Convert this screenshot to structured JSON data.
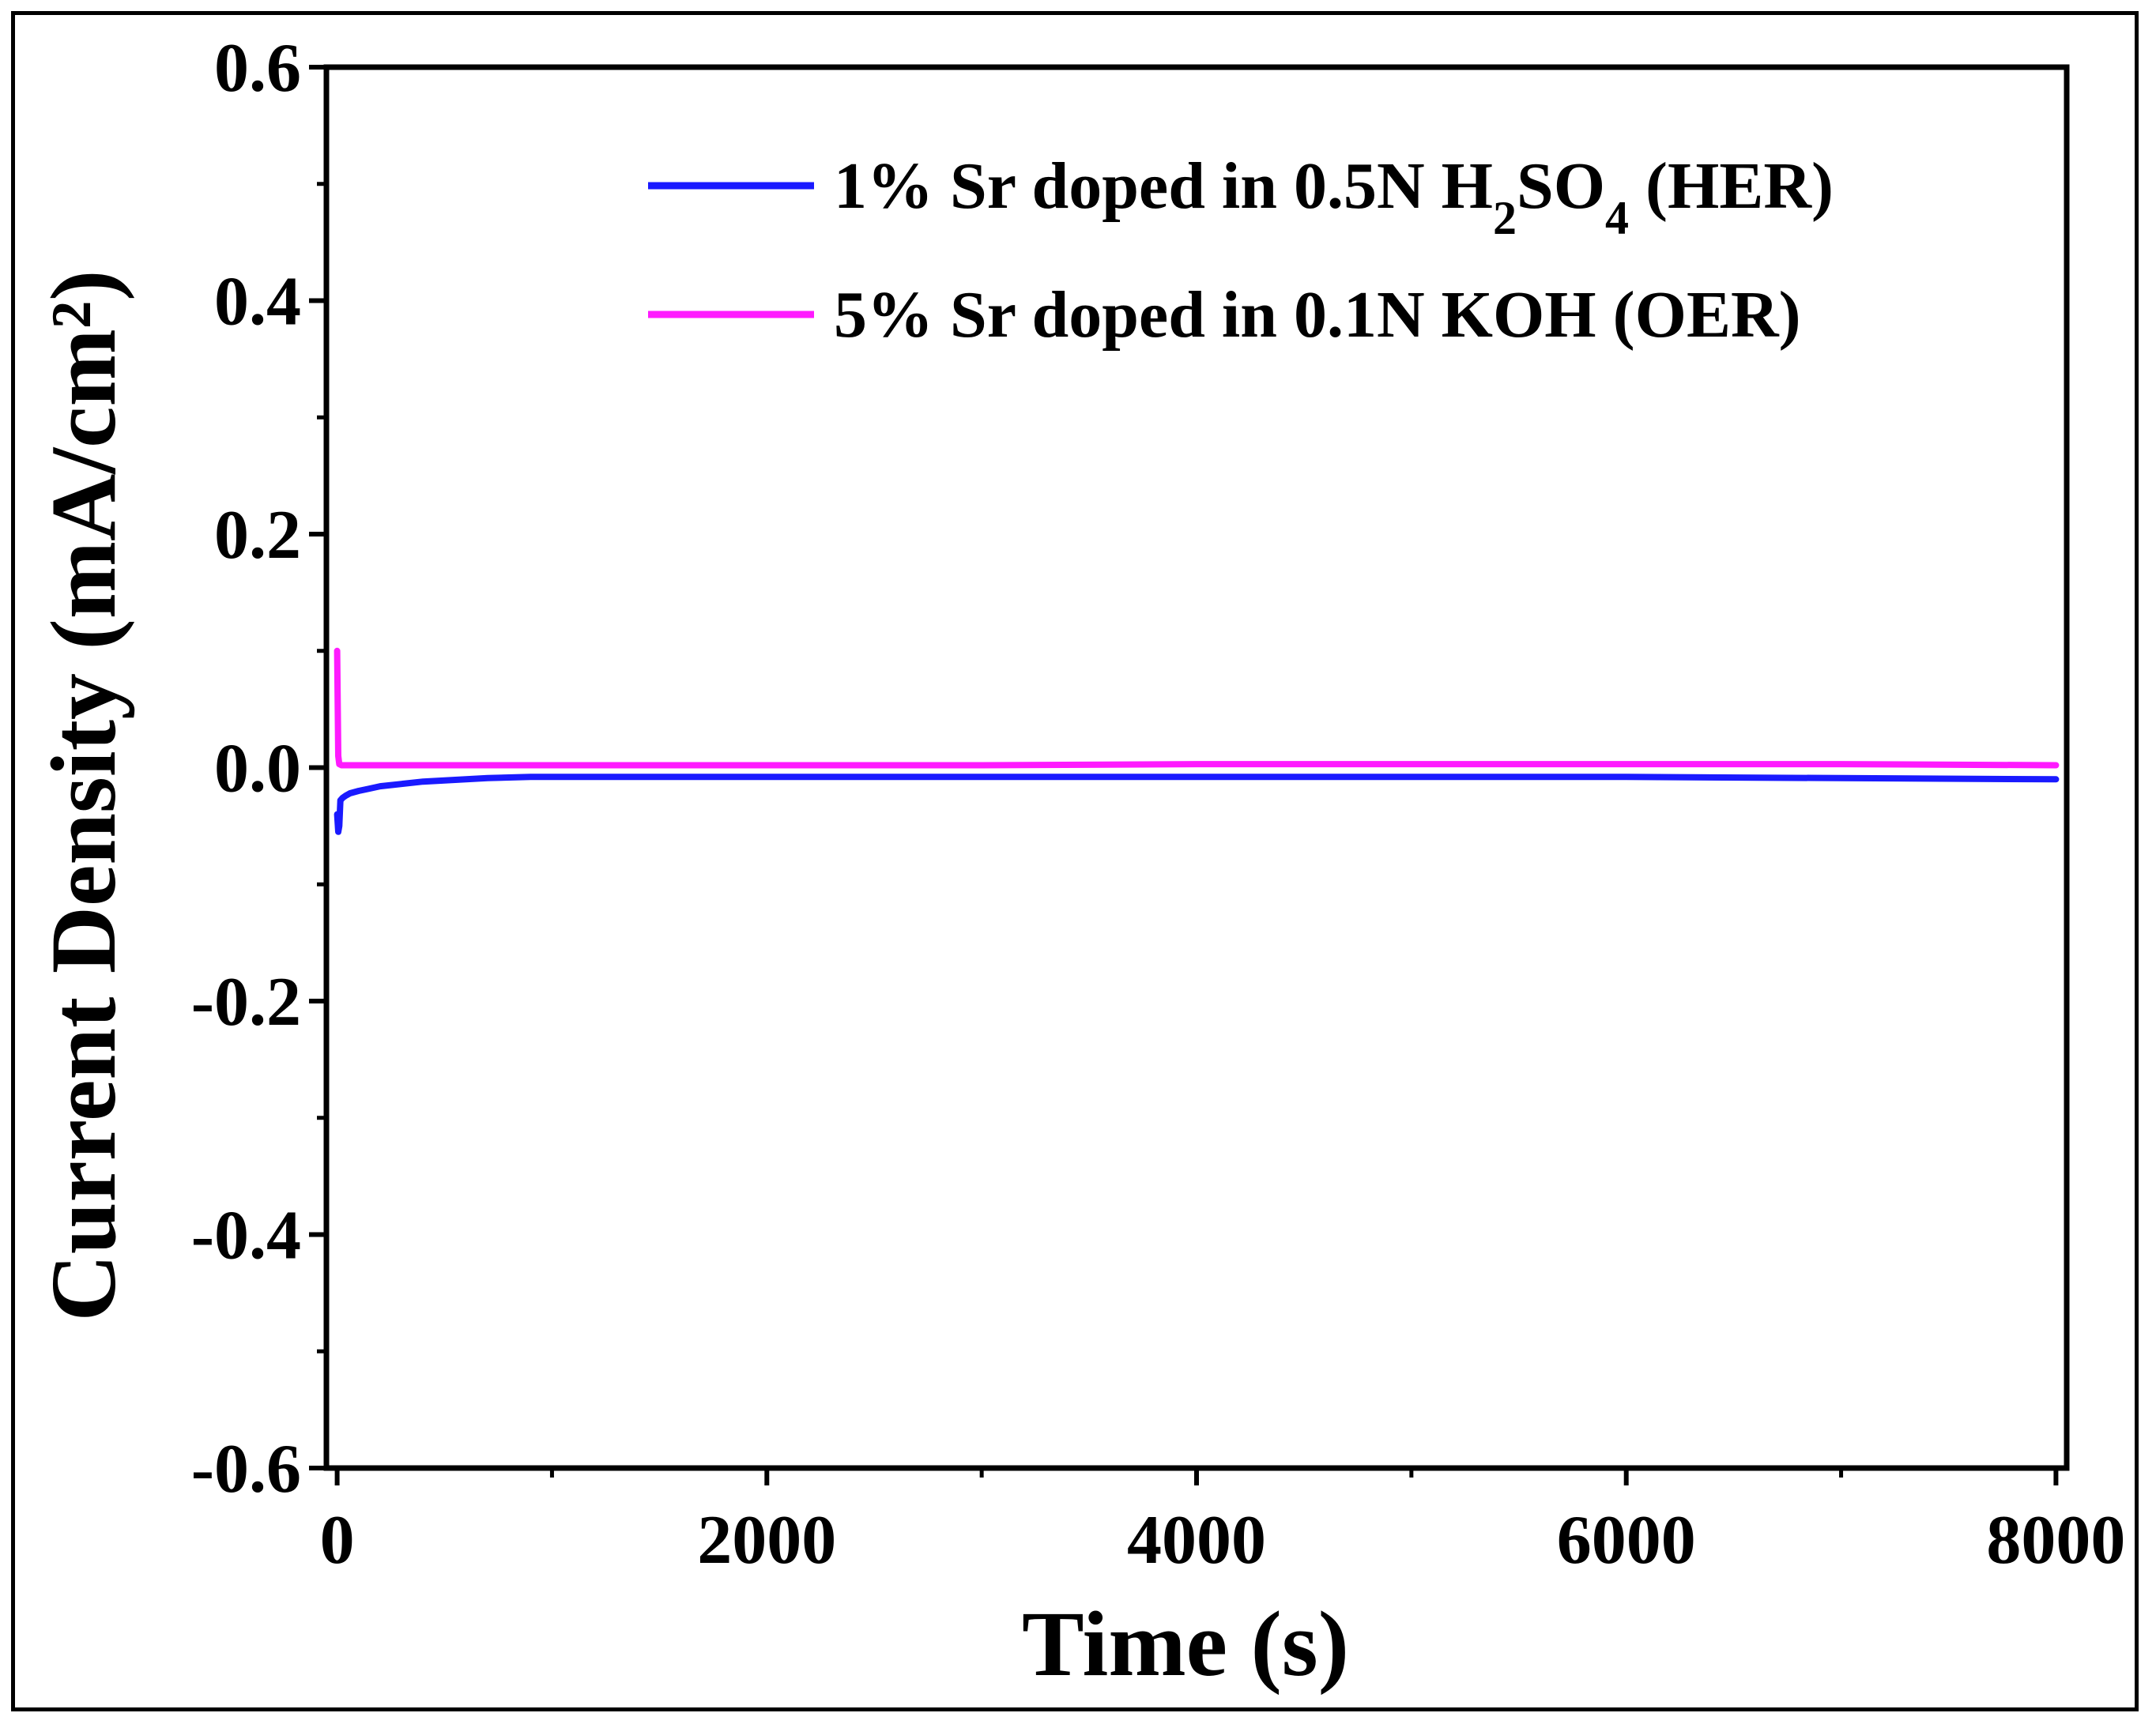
{
  "chart_data": {
    "type": "line",
    "xlabel": "Time (s)",
    "ylabel": "Current Density (mA/cm²)",
    "xlim": [
      -50,
      8050
    ],
    "ylim": [
      -0.6,
      0.6
    ],
    "x_ticks": [
      0,
      2000,
      4000,
      6000,
      8000
    ],
    "x_tick_labels": [
      "0",
      "2000",
      "4000",
      "6000",
      "8000"
    ],
    "y_ticks": [
      -0.6,
      -0.4,
      -0.2,
      0.0,
      0.2,
      0.4,
      0.6
    ],
    "y_tick_labels": [
      "-0.6",
      "-0.4",
      "-0.2",
      "0.0",
      "0.2",
      "0.4",
      "0.6"
    ],
    "legend_position": "top-right",
    "series": [
      {
        "name": "1% Sr doped in 0.5N H2SO4 (HER)",
        "legend": {
          "parts": [
            {
              "text": "1% Sr doped in 0.5N H",
              "sub": false
            },
            {
              "text": "2",
              "sub": true
            },
            {
              "text": "SO",
              "sub": false
            },
            {
              "text": "4",
              "sub": true
            },
            {
              "text": " (HER)",
              "sub": false
            }
          ]
        },
        "color": "#1a1aff",
        "x": [
          0,
          5,
          10,
          15,
          25,
          40,
          60,
          100,
          150,
          200,
          300,
          400,
          500,
          700,
          900,
          1200,
          1600,
          2000,
          3000,
          4000,
          5000,
          6000,
          7000,
          8000
        ],
        "y": [
          -0.04,
          -0.055,
          -0.05,
          -0.028,
          -0.026,
          -0.024,
          -0.022,
          -0.02,
          -0.018,
          -0.016,
          -0.014,
          -0.012,
          -0.011,
          -0.009,
          -0.008,
          -0.008,
          -0.008,
          -0.008,
          -0.008,
          -0.008,
          -0.008,
          -0.008,
          -0.009,
          -0.01
        ]
      },
      {
        "name": "5% Sr doped in 0.1N KOH (OER)",
        "legend": {
          "parts": [
            {
              "text": "5% Sr doped in 0.1N KOH (OER)",
              "sub": false
            }
          ]
        },
        "color": "#ff1aff",
        "x": [
          0,
          5,
          10,
          20,
          50,
          100,
          200,
          500,
          1000,
          2000,
          3000,
          4000,
          5000,
          6000,
          7000,
          8000
        ],
        "y": [
          0.1,
          0.01,
          0.003,
          0.002,
          0.002,
          0.002,
          0.002,
          0.002,
          0.002,
          0.002,
          0.002,
          0.003,
          0.003,
          0.003,
          0.003,
          0.002
        ]
      }
    ]
  }
}
